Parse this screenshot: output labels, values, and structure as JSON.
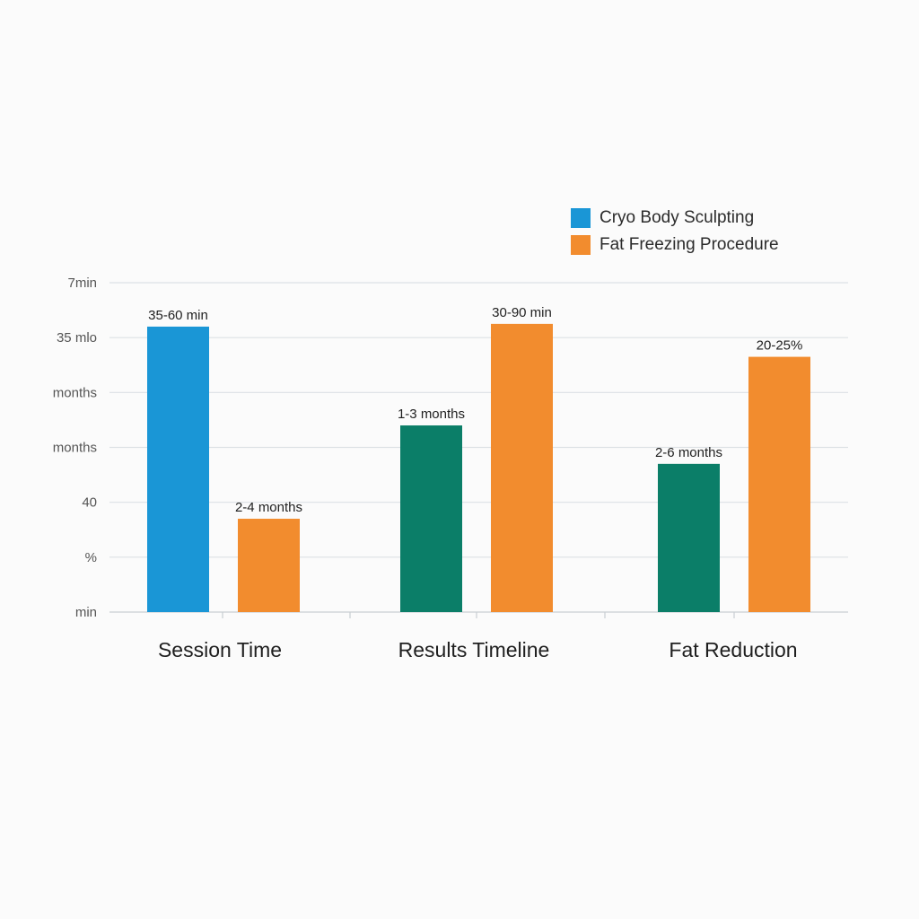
{
  "chart_data": {
    "type": "bar",
    "categories": [
      "Session Time",
      "Results Timeline",
      "Fat Reduction"
    ],
    "y_tick_labels": [
      "min",
      "%",
      "40",
      "months",
      "months",
      "35 mlo",
      "7min"
    ],
    "legend": [
      {
        "label": "Cryo Body Sculpting",
        "color": "#1a96d6"
      },
      {
        "label": "Fat Freezing Procedure",
        "color": "#f28c2e"
      }
    ],
    "legend_position": "top-right",
    "grid": true,
    "ylim": [
      0,
      6
    ],
    "bars": [
      {
        "category": "Session Time",
        "value": 5.2,
        "color": "#1a96d6",
        "label": "35-60 min"
      },
      {
        "category": "Session Time",
        "value": 1.7,
        "color": "#f28c2e",
        "label": "2-4 months"
      },
      {
        "category": "Results Timeline",
        "value": 3.4,
        "color": "#0b7e68",
        "label": "1-3 months"
      },
      {
        "category": "Results Timeline",
        "value": 5.25,
        "color": "#f28c2e",
        "label": "30-90 min"
      },
      {
        "category": "Fat Reduction",
        "value": 2.7,
        "color": "#0b7e68",
        "label": "2-6 months"
      },
      {
        "category": "Fat Reduction",
        "value": 4.65,
        "color": "#f28c2e",
        "label": "20-25%"
      }
    ]
  }
}
